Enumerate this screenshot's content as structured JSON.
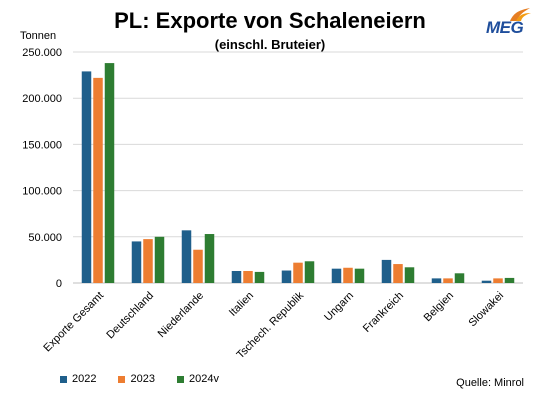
{
  "chart_data": {
    "type": "bar",
    "title": "PL: Exporte von Schaleneiern",
    "subtitle": "(einschl. Bruteier)",
    "ylabel": "Tonnen",
    "categories": [
      "Exporte Gesamt",
      "Deutschland",
      "Niederlande",
      "Italien",
      "Tschech. Republik",
      "Ungarn",
      "Frankreich",
      "Belgien",
      "Slowakei"
    ],
    "series": [
      {
        "name": "2022",
        "color": "#1f5f8b",
        "values": [
          229000,
          45000,
          57000,
          13000,
          13500,
          15500,
          25000,
          5000,
          2500
        ]
      },
      {
        "name": "2023",
        "color": "#ed7d31",
        "values": [
          222000,
          47500,
          36000,
          13000,
          22000,
          16500,
          20500,
          5000,
          5000
        ]
      },
      {
        "name": "2024v",
        "color": "#2e7d32",
        "values": [
          238000,
          50000,
          53000,
          12000,
          23500,
          15500,
          17000,
          10500,
          5500
        ]
      }
    ],
    "ylim": [
      0,
      250000
    ],
    "yticks": [
      0,
      50000,
      100000,
      150000,
      200000,
      250000
    ],
    "ytick_labels": [
      "0",
      "50.000",
      "100.000",
      "150.000",
      "200.000",
      "250.000"
    ],
    "grid": true,
    "legend_position": "bottom-left"
  },
  "source": "Quelle: Minrol",
  "logo": {
    "text": "MEG",
    "color": "#1f4e9c",
    "flame_color": "#e67e22"
  }
}
